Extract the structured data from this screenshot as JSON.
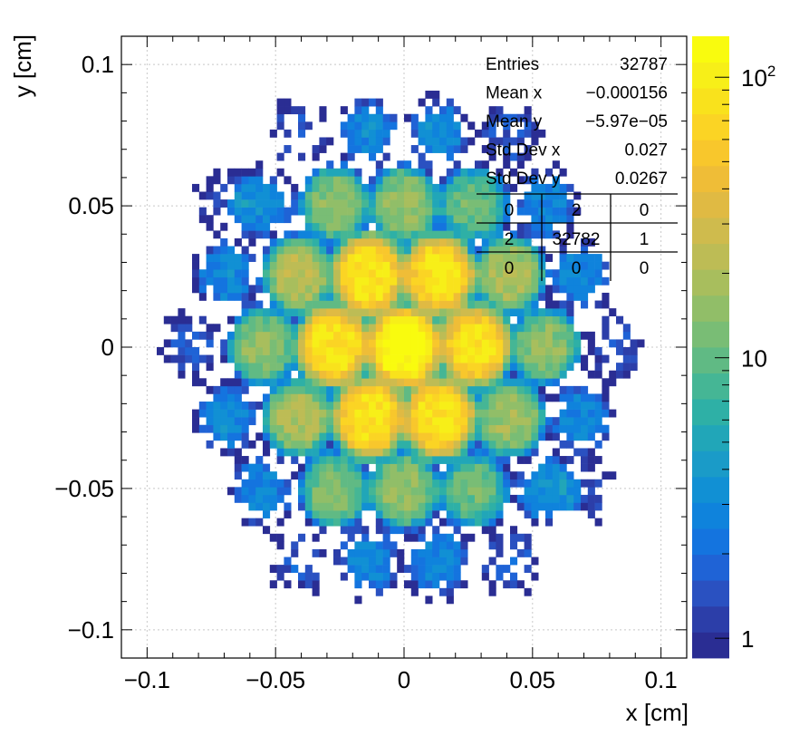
{
  "chart_data": {
    "type": "heatmap",
    "title": "",
    "xlabel": "x [cm]",
    "ylabel": "y [cm]",
    "xlim": [
      -0.11,
      0.11
    ],
    "ylim": [
      -0.11,
      0.11
    ],
    "grid": true,
    "x_ticks": [
      {
        "value": -0.1,
        "label": "−0.1"
      },
      {
        "value": -0.05,
        "label": "−0.05"
      },
      {
        "value": 0,
        "label": "0"
      },
      {
        "value": 0.05,
        "label": "0.05"
      },
      {
        "value": 0.1,
        "label": "0.1"
      }
    ],
    "y_ticks": [
      {
        "value": -0.1,
        "label": "−0.1"
      },
      {
        "value": -0.05,
        "label": "−0.05"
      },
      {
        "value": 0,
        "label": "0"
      },
      {
        "value": 0.05,
        "label": "0.05"
      },
      {
        "value": 0.1,
        "label": "0.1"
      }
    ],
    "colorbar": {
      "scale": "log",
      "range": [
        0.85,
        140
      ],
      "ticks": [
        {
          "value": 1,
          "label": "1"
        },
        {
          "value": 10,
          "label": "10"
        },
        {
          "value": 100,
          "label": "10",
          "sup": "2"
        }
      ],
      "palette": [
        "#2a2d93",
        "#2c3ea9",
        "#2a51c1",
        "#1f63d6",
        "#1474df",
        "#0f83dc",
        "#1190d4",
        "#1a9bc8",
        "#21a6b8",
        "#2eb0a6",
        "#45b695",
        "#60ba84",
        "#79bd75",
        "#91be68",
        "#a8be5d",
        "#bdbc55",
        "#cfbb4d",
        "#e0ba43",
        "#efbd37",
        "#f8c72c",
        "#fbd424",
        "#f9e21c",
        "#f7ef18",
        "#f9fb0e"
      ]
    },
    "hotspots": [
      {
        "x": 0,
        "y": 0,
        "peak": 140
      },
      {
        "x": -0.0135,
        "y": 0.0255,
        "peak": 95
      },
      {
        "x": 0.0135,
        "y": 0.0255,
        "peak": 90
      },
      {
        "x": -0.0275,
        "y": 0.0005,
        "peak": 92
      },
      {
        "x": 0.0275,
        "y": 0.0005,
        "peak": 88
      },
      {
        "x": -0.0135,
        "y": -0.025,
        "peak": 90
      },
      {
        "x": 0.0135,
        "y": -0.025,
        "peak": 88
      },
      {
        "x": -0.041,
        "y": 0.0255,
        "peak": 22
      },
      {
        "x": 0.041,
        "y": 0.0255,
        "peak": 20
      },
      {
        "x": -0.055,
        "y": 0.0005,
        "peak": 15
      },
      {
        "x": 0.055,
        "y": 0.0005,
        "peak": 15
      },
      {
        "x": -0.041,
        "y": -0.025,
        "peak": 20
      },
      {
        "x": 0.041,
        "y": -0.025,
        "peak": 18
      },
      {
        "x": -0.027,
        "y": 0.0505,
        "peak": 14
      },
      {
        "x": 0,
        "y": 0.0505,
        "peak": 16
      },
      {
        "x": 0.027,
        "y": 0.0505,
        "peak": 11
      },
      {
        "x": -0.027,
        "y": -0.0505,
        "peak": 13
      },
      {
        "x": 0,
        "y": -0.0505,
        "peak": 16
      },
      {
        "x": 0.027,
        "y": -0.0505,
        "peak": 11
      },
      {
        "x": -0.055,
        "y": 0.0505,
        "peak": 3
      },
      {
        "x": 0.055,
        "y": 0.0505,
        "peak": 3
      },
      {
        "x": -0.069,
        "y": 0.0255,
        "peak": 3
      },
      {
        "x": 0.069,
        "y": 0.0255,
        "peak": 3
      },
      {
        "x": -0.069,
        "y": -0.025,
        "peak": 3
      },
      {
        "x": 0.069,
        "y": -0.025,
        "peak": 3
      },
      {
        "x": -0.055,
        "y": -0.0505,
        "peak": 3
      },
      {
        "x": 0.055,
        "y": -0.0505,
        "peak": 3
      },
      {
        "x": -0.0135,
        "y": 0.0755,
        "peak": 3
      },
      {
        "x": 0.0135,
        "y": 0.0755,
        "peak": 3
      },
      {
        "x": -0.0135,
        "y": -0.0755,
        "peak": 3
      },
      {
        "x": 0.0135,
        "y": -0.0755,
        "peak": 3
      },
      {
        "x": -0.041,
        "y": 0.0755,
        "peak": 1.6
      },
      {
        "x": 0.041,
        "y": 0.0755,
        "peak": 1.6
      },
      {
        "x": -0.041,
        "y": -0.0755,
        "peak": 1.6
      },
      {
        "x": 0.041,
        "y": -0.0755,
        "peak": 1.6
      },
      {
        "x": -0.083,
        "y": 0.0005,
        "peak": 1.6
      },
      {
        "x": 0.083,
        "y": 0.0005,
        "peak": 1.6
      },
      {
        "x": -0.069,
        "y": 0.0505,
        "peak": 1.4
      },
      {
        "x": 0.069,
        "y": -0.0505,
        "peak": 1.4
      }
    ],
    "stats": [
      {
        "label": "Entries",
        "value": "32787"
      },
      {
        "label": "Mean x",
        "value": "−0.000156"
      },
      {
        "label": "Mean y",
        "value": "−5.97e−05"
      },
      {
        "label": "Std Dev x",
        "value": "0.027"
      },
      {
        "label": "Std Dev y",
        "value": "0.0267"
      }
    ],
    "overflow_grid": [
      [
        "0",
        "2",
        "0"
      ],
      [
        "2",
        "32782",
        "1"
      ],
      [
        "0",
        "0",
        "0"
      ]
    ]
  }
}
